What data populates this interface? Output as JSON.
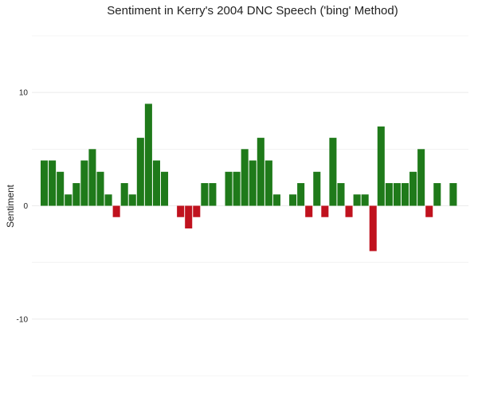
{
  "chart_data": {
    "type": "bar",
    "title": "Sentiment in Kerry's 2004 DNC Speech ('bing' Method)",
    "xlabel": "",
    "ylabel": "Sentiment",
    "ylim": [
      -15,
      15
    ],
    "yticks": [
      {
        "value": 10,
        "label": "10"
      },
      {
        "value": 0,
        "label": "0"
      },
      {
        "value": -10,
        "label": "-10"
      }
    ],
    "grid": true,
    "x": [
      1,
      2,
      3,
      4,
      5,
      6,
      7,
      8,
      9,
      10,
      11,
      12,
      13,
      14,
      15,
      16,
      17,
      18,
      19,
      20,
      21,
      22,
      23,
      24,
      25,
      26,
      27,
      28,
      29,
      30,
      31,
      32,
      33,
      34,
      35,
      36,
      37,
      38,
      39,
      40,
      41,
      42,
      43,
      44,
      45,
      46,
      47,
      48,
      49,
      50,
      51,
      52,
      53
    ],
    "values": [
      4,
      4,
      3,
      1,
      2,
      4,
      5,
      3,
      1,
      -1,
      2,
      1,
      6,
      9,
      4,
      3,
      0,
      -1,
      -2,
      -1,
      2,
      2,
      0,
      3,
      3,
      5,
      4,
      6,
      4,
      1,
      0,
      1,
      2,
      -1,
      3,
      -1,
      6,
      2,
      -1,
      1,
      1,
      -4,
      7,
      2,
      2,
      2,
      3,
      5,
      -1,
      2,
      0,
      2,
      0
    ],
    "colors": {
      "positive": "#1f7a1a",
      "negative": "#c0121e",
      "grid": "#ebebeb",
      "text": "#222222"
    }
  }
}
